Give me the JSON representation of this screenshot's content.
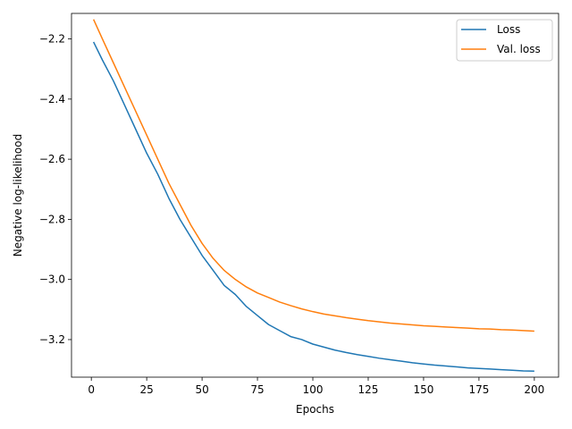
{
  "chart_data": {
    "type": "line",
    "title": "",
    "xlabel": "Epochs",
    "ylabel": "Negative log-likelihood",
    "xlim": [
      -8.95,
      210.95
    ],
    "ylim": [
      -3.325,
      -2.115
    ],
    "xticks": [
      0,
      25,
      50,
      75,
      100,
      125,
      150,
      175,
      200
    ],
    "yticks": [
      -2.2,
      -2.4,
      -2.6,
      -2.8,
      -3.0,
      -3.2
    ],
    "xtick_labels": [
      "0",
      "25",
      "50",
      "75",
      "100",
      "125",
      "150",
      "175",
      "200"
    ],
    "ytick_labels": [
      "−2.2",
      "−2.4",
      "−2.6",
      "−2.8",
      "−3.0",
      "−3.2"
    ],
    "grid": false,
    "legend_position": "top-right",
    "series": [
      {
        "name": "Loss",
        "color": "#1f77b4",
        "x": [
          1,
          5,
          10,
          15,
          20,
          25,
          30,
          35,
          40,
          45,
          50,
          55,
          60,
          65,
          70,
          75,
          80,
          85,
          90,
          95,
          100,
          105,
          110,
          115,
          120,
          125,
          130,
          135,
          140,
          145,
          150,
          155,
          160,
          165,
          170,
          175,
          180,
          185,
          190,
          195,
          200
        ],
        "y": [
          -2.21,
          -2.27,
          -2.34,
          -2.42,
          -2.5,
          -2.58,
          -2.65,
          -2.73,
          -2.8,
          -2.86,
          -2.92,
          -2.97,
          -3.02,
          -3.05,
          -3.09,
          -3.12,
          -3.15,
          -3.17,
          -3.19,
          -3.2,
          -3.215,
          -3.225,
          -3.235,
          -3.243,
          -3.25,
          -3.256,
          -3.262,
          -3.267,
          -3.272,
          -3.277,
          -3.281,
          -3.285,
          -3.288,
          -3.291,
          -3.294,
          -3.296,
          -3.298,
          -3.3,
          -3.302,
          -3.304,
          -3.305
        ]
      },
      {
        "name": "Val. loss",
        "color": "#ff7f0e",
        "x": [
          1,
          5,
          10,
          15,
          20,
          25,
          30,
          35,
          40,
          45,
          50,
          55,
          60,
          65,
          70,
          75,
          80,
          85,
          90,
          95,
          100,
          105,
          110,
          115,
          120,
          125,
          130,
          135,
          140,
          145,
          150,
          155,
          160,
          165,
          170,
          175,
          180,
          185,
          190,
          195,
          200
        ],
        "y": [
          -2.135,
          -2.2,
          -2.28,
          -2.36,
          -2.44,
          -2.52,
          -2.6,
          -2.68,
          -2.75,
          -2.82,
          -2.88,
          -2.93,
          -2.97,
          -3.0,
          -3.025,
          -3.045,
          -3.06,
          -3.075,
          -3.087,
          -3.098,
          -3.107,
          -3.115,
          -3.121,
          -3.127,
          -3.132,
          -3.137,
          -3.141,
          -3.145,
          -3.148,
          -3.151,
          -3.154,
          -3.156,
          -3.158,
          -3.16,
          -3.162,
          -3.164,
          -3.165,
          -3.167,
          -3.168,
          -3.17,
          -3.172
        ]
      }
    ]
  }
}
